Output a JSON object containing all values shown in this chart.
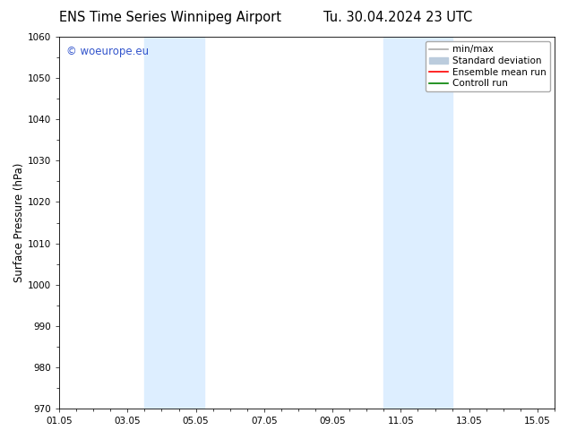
{
  "title_left": "ENS Time Series Winnipeg Airport",
  "title_right": "Tu. 30.04.2024 23 UTC",
  "ylabel": "Surface Pressure (hPa)",
  "ylim": [
    970,
    1060
  ],
  "yticks": [
    970,
    980,
    990,
    1000,
    1010,
    1020,
    1030,
    1040,
    1050,
    1060
  ],
  "xtick_labels": [
    "01.05",
    "03.05",
    "05.05",
    "07.05",
    "09.05",
    "11.05",
    "13.05",
    "15.05"
  ],
  "xtick_positions": [
    1,
    3,
    5,
    7,
    9,
    11,
    13,
    15
  ],
  "xlim": [
    1,
    15.5
  ],
  "shaded_bands": [
    {
      "x_start": 3.5,
      "x_end": 5.25
    },
    {
      "x_start": 10.5,
      "x_end": 12.5
    }
  ],
  "shaded_color": "#ddeeff",
  "watermark": "© woeurope.eu",
  "watermark_color": "#3355cc",
  "legend_items": [
    {
      "label": "min/max",
      "color": "#aaaaaa",
      "lw": 1.2,
      "style": "solid"
    },
    {
      "label": "Standard deviation",
      "color": "#bbccdd",
      "lw": 6,
      "style": "solid"
    },
    {
      "label": "Ensemble mean run",
      "color": "red",
      "lw": 1.2,
      "style": "solid"
    },
    {
      "label": "Controll run",
      "color": "green",
      "lw": 1.2,
      "style": "solid"
    }
  ],
  "background_color": "#ffffff",
  "title_fontsize": 10.5,
  "axis_label_fontsize": 8.5,
  "tick_fontsize": 7.5,
  "legend_fontsize": 7.5,
  "watermark_fontsize": 8.5
}
